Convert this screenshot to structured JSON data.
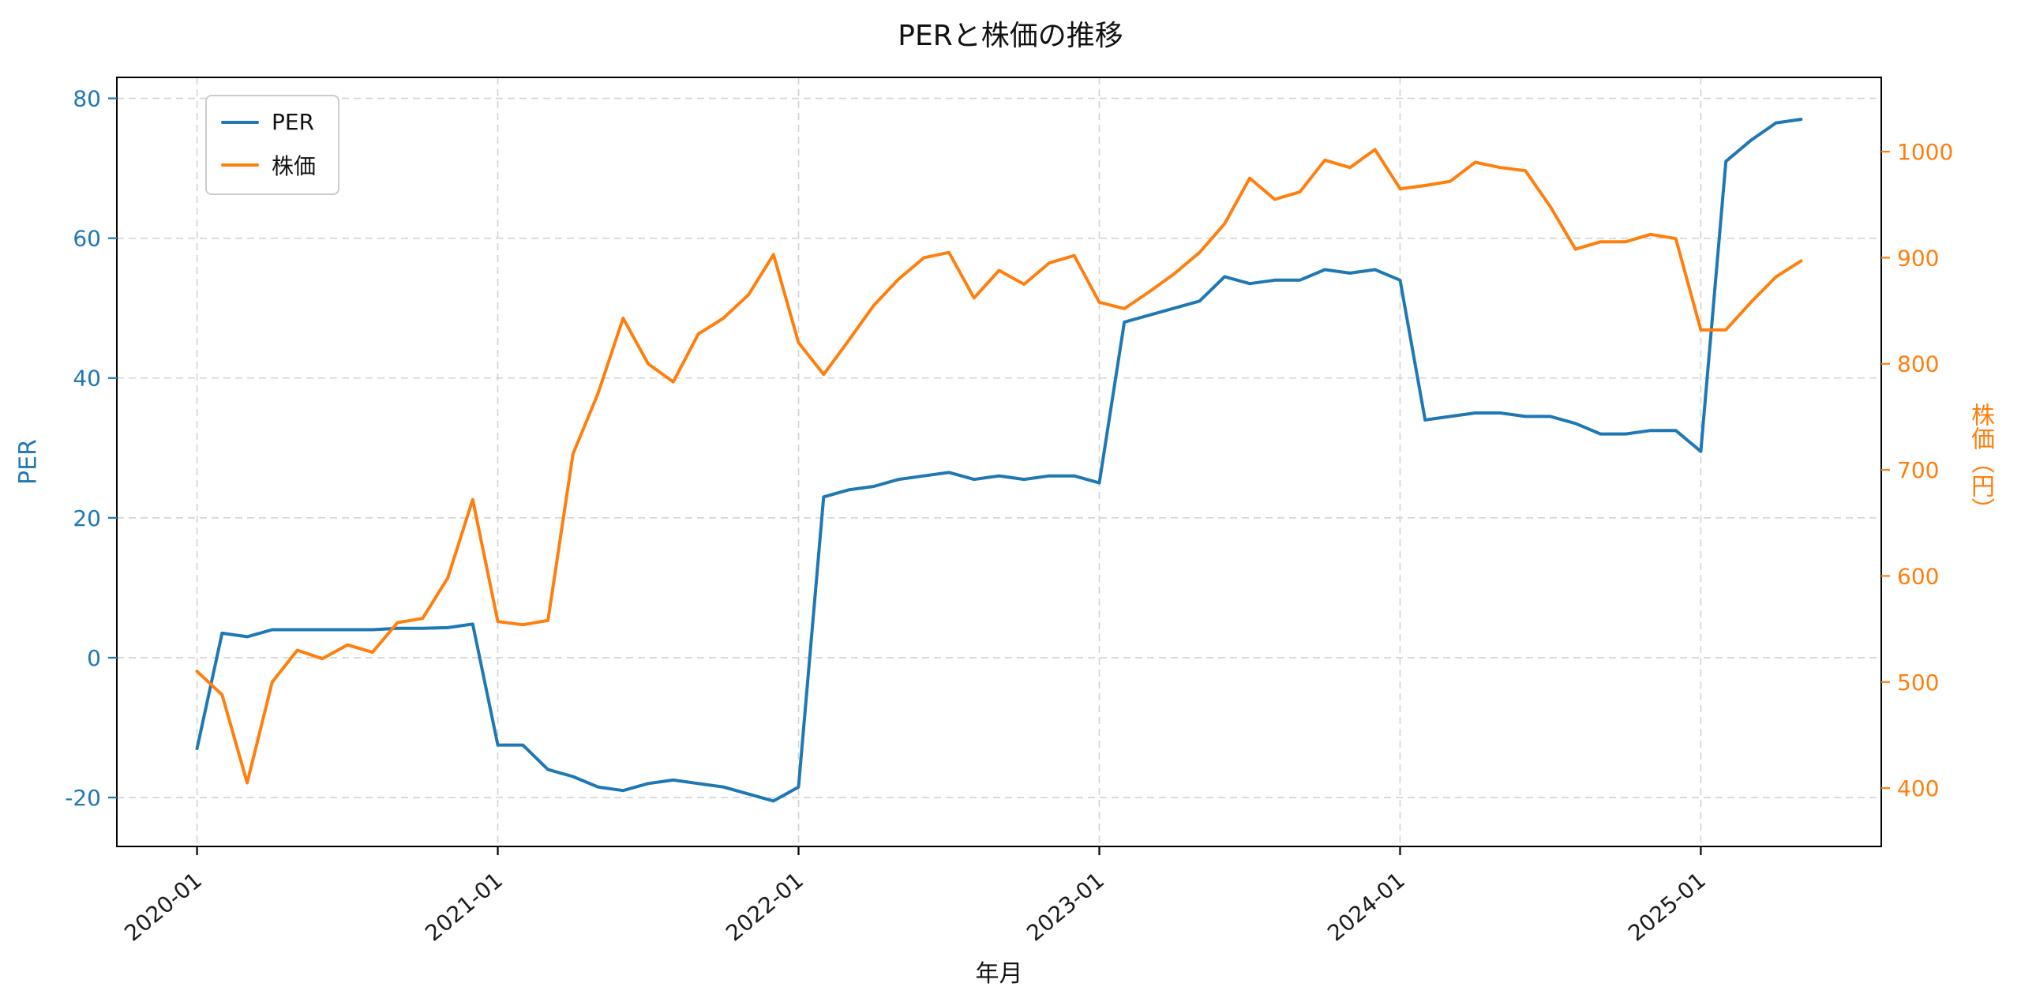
{
  "chart_data": {
    "type": "line",
    "title": "PERと株価の推移",
    "xlabel": "年月",
    "x": [
      "2020-01",
      "2020-02",
      "2020-03",
      "2020-04",
      "2020-05",
      "2020-06",
      "2020-07",
      "2020-08",
      "2020-09",
      "2020-10",
      "2020-11",
      "2020-12",
      "2021-01",
      "2021-02",
      "2021-03",
      "2021-04",
      "2021-05",
      "2021-06",
      "2021-07",
      "2021-08",
      "2021-09",
      "2021-10",
      "2021-11",
      "2021-12",
      "2022-01",
      "2022-02",
      "2022-03",
      "2022-04",
      "2022-05",
      "2022-06",
      "2022-07",
      "2022-08",
      "2022-09",
      "2022-10",
      "2022-11",
      "2022-12",
      "2023-01",
      "2023-02",
      "2023-03",
      "2023-04",
      "2023-05",
      "2023-06",
      "2023-07",
      "2023-08",
      "2023-09",
      "2023-10",
      "2023-11",
      "2023-12",
      "2024-01",
      "2024-02",
      "2024-03",
      "2024-04",
      "2024-05",
      "2024-06",
      "2024-07",
      "2024-08",
      "2024-09",
      "2024-10",
      "2024-11",
      "2024-12",
      "2025-01",
      "2025-02",
      "2025-03",
      "2025-04",
      "2025-05"
    ],
    "xticks": {
      "indices": [
        0,
        12,
        24,
        36,
        48,
        60
      ],
      "labels": [
        "2020-01",
        "2021-01",
        "2022-01",
        "2023-01",
        "2024-01",
        "2025-01"
      ]
    },
    "axes": {
      "left": {
        "label": "PER",
        "color": "#1f77b4",
        "ticks": [
          -20,
          0,
          20,
          40,
          60,
          80
        ],
        "range": [
          -27,
          83
        ]
      },
      "right": {
        "label": "株価（円）",
        "color": "#ff7f0e",
        "ticks": [
          400,
          500,
          600,
          700,
          800,
          900,
          1000
        ],
        "range": [
          345,
          1070
        ]
      }
    },
    "series": [
      {
        "name": "PER",
        "axis": "left",
        "color": "#1f77b4",
        "values": [
          -13,
          3.5,
          3,
          4,
          4,
          4,
          4,
          4,
          4.2,
          4.2,
          4.3,
          4.8,
          -12.5,
          -12.5,
          -16,
          -17,
          -18.5,
          -19,
          -18,
          -17.5,
          -18,
          -18.5,
          -19.5,
          -20.5,
          -18.5,
          23,
          24,
          24.5,
          25.5,
          26,
          26.5,
          25.5,
          26,
          25.5,
          26,
          26,
          25,
          48,
          49,
          50,
          51,
          54.5,
          53.5,
          54,
          54,
          55.5,
          55,
          55.5,
          54,
          34,
          34.5,
          35,
          35,
          34.5,
          34.5,
          33.5,
          32,
          32,
          32.5,
          32.5,
          29.5,
          71,
          74,
          76.5,
          77
        ]
      },
      {
        "name": "株価",
        "axis": "right",
        "color": "#ff7f0e",
        "values": [
          510,
          488,
          405,
          500,
          530,
          522,
          535,
          528,
          556,
          560,
          598,
          672,
          557,
          554,
          558,
          715,
          772,
          843,
          800,
          783,
          828,
          843,
          865,
          903,
          820,
          790,
          822,
          855,
          880,
          900,
          905,
          862,
          888,
          875,
          895,
          902,
          858,
          852,
          868,
          885,
          905,
          932,
          975,
          955,
          962,
          992,
          985,
          1002,
          965,
          968,
          972,
          990,
          985,
          982,
          948,
          908,
          915,
          915,
          922,
          918,
          832,
          832,
          858,
          882,
          897
        ]
      }
    ],
    "legend": {
      "position": "upper-left",
      "entries": [
        "PER",
        "株価"
      ]
    },
    "grid": true
  }
}
